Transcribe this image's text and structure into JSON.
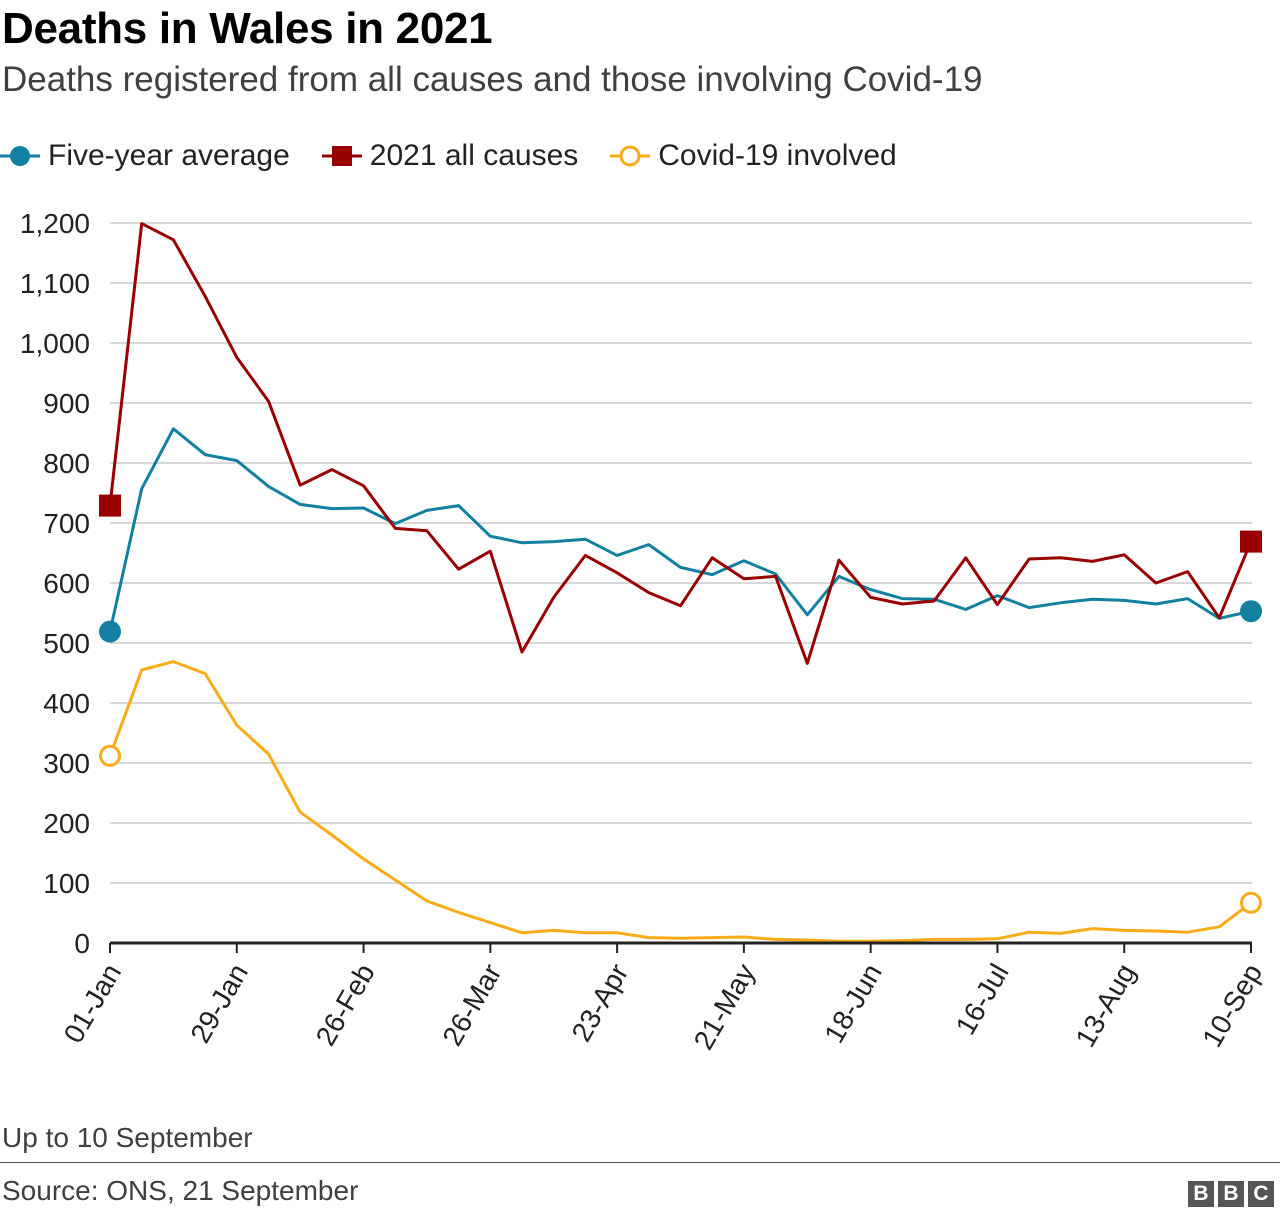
{
  "title": "Deaths in Wales in 2021",
  "subtitle": "Deaths registered from all causes and those involving Covid-19",
  "note": "Up to 10 September",
  "source": "Source: ONS, 21 September",
  "logo": [
    "B",
    "B",
    "C"
  ],
  "legend": [
    {
      "label": "Five-year average",
      "color": "#1380A1",
      "marker": "filled-circle"
    },
    {
      "label": "2021 all causes",
      "color": "#990000",
      "marker": "filled-square"
    },
    {
      "label": "Covid-19 involved",
      "color": "#FAAB18",
      "marker": "hollow-circle"
    }
  ],
  "chart_data": {
    "type": "line",
    "title": "Deaths in Wales in 2021",
    "xlabel": "",
    "ylabel": "",
    "ylim": [
      0,
      1200
    ],
    "yticks": [
      0,
      100,
      200,
      300,
      400,
      500,
      600,
      700,
      800,
      900,
      1000,
      1100,
      1200
    ],
    "ytick_labels": [
      "0",
      "100",
      "200",
      "300",
      "400",
      "500",
      "600",
      "700",
      "800",
      "900",
      "1,000",
      "1,100",
      "1,200"
    ],
    "xtick_labels": [
      "01-Jan",
      "29-Jan",
      "26-Feb",
      "26-Mar",
      "23-Apr",
      "21-May",
      "18-Jun",
      "16-Jul",
      "13-Aug",
      "10-Sep"
    ],
    "xtick_every": 4,
    "grid": true,
    "legend_position": "top-left",
    "x": [
      "01-Jan",
      "08-Jan",
      "15-Jan",
      "22-Jan",
      "29-Jan",
      "05-Feb",
      "12-Feb",
      "19-Feb",
      "26-Feb",
      "05-Mar",
      "12-Mar",
      "19-Mar",
      "26-Mar",
      "02-Apr",
      "09-Apr",
      "16-Apr",
      "23-Apr",
      "30-Apr",
      "07-May",
      "14-May",
      "21-May",
      "28-May",
      "04-Jun",
      "11-Jun",
      "18-Jun",
      "25-Jun",
      "02-Jul",
      "09-Jul",
      "16-Jul",
      "23-Jul",
      "30-Jul",
      "06-Aug",
      "13-Aug",
      "20-Aug",
      "27-Aug",
      "03-Sep",
      "10-Sep"
    ],
    "series": [
      {
        "name": "Five-year average",
        "color": "#1380A1",
        "values": [
          519,
          757,
          857,
          814,
          804,
          761,
          731,
          724,
          725,
          699,
          721,
          729,
          678,
          667,
          669,
          673,
          646,
          664,
          626,
          614,
          637,
          615,
          547,
          611,
          589,
          574,
          573,
          556,
          579,
          559,
          567,
          573,
          571,
          565,
          574,
          541,
          553
        ]
      },
      {
        "name": "2021 all causes",
        "color": "#990000",
        "values": [
          729,
          1199,
          1172,
          1078,
          976,
          903,
          763,
          789,
          762,
          691,
          687,
          623,
          653,
          485,
          576,
          646,
          617,
          584,
          562,
          642,
          607,
          611,
          466,
          638,
          576,
          565,
          570,
          642,
          564,
          640,
          642,
          636,
          647,
          600,
          619,
          542,
          669
        ]
      },
      {
        "name": "Covid-19 involved",
        "color": "#FAAB18",
        "values": [
          312,
          455,
          469,
          449,
          363,
          315,
          218,
          180,
          140,
          105,
          70,
          51,
          34,
          17,
          21,
          17,
          17,
          9,
          8,
          9,
          10,
          6,
          5,
          3,
          3,
          4,
          6,
          6,
          7,
          18,
          16,
          24,
          21,
          20,
          18,
          27,
          67
        ]
      }
    ]
  }
}
